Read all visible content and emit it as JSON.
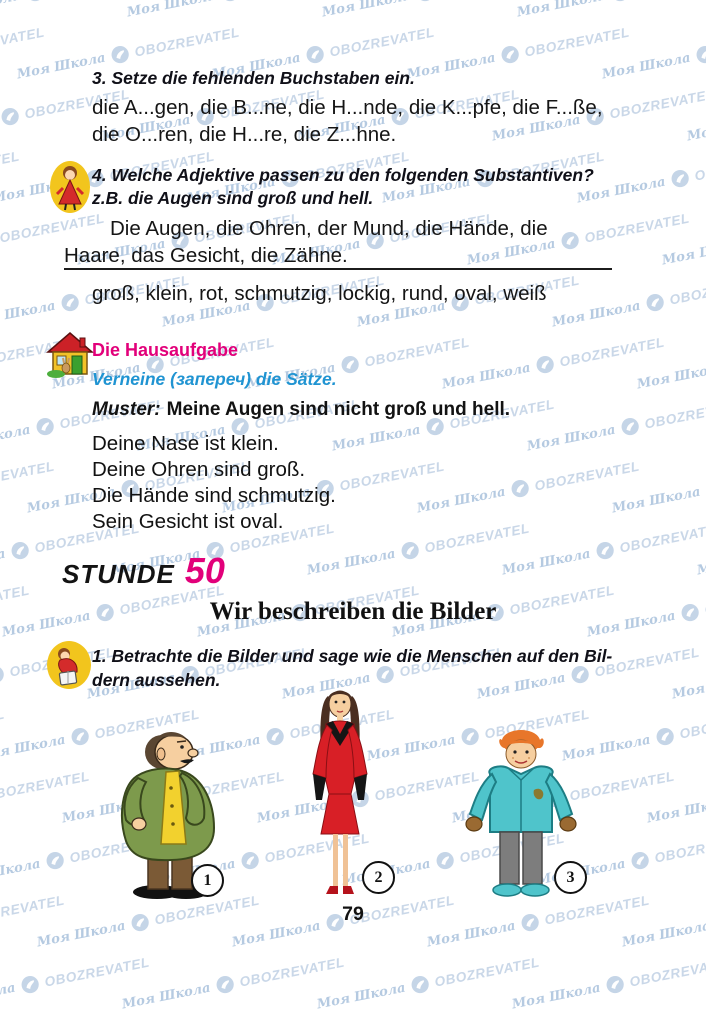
{
  "watermark": {
    "school": "Моя Школа",
    "brand": "OBOZREVATEL",
    "logo_icon": "obozrevatel-bird-logo-icon"
  },
  "exercise3": {
    "title": "3. Setze die fehlenden Buchstaben ein.",
    "line1": "die A...gen, die B...ne, die H...nde, die K...pfe, die F...ße,",
    "line2": "die O...ren, die H...re, die Z...hne."
  },
  "exercise4": {
    "icon": "student-figure-icon",
    "title_line1": "4. Welche Adjektive passen zu den folgenden Substantiven?",
    "title_line2": "z.B. die Augen sind groß und hell.",
    "body_line1": "Die Augen, die Ohren, der Mund, die Hände, die Haare,",
    "body_line2": "das Gesicht, die Zähne.",
    "adjectives": "groß, klein, rot, schmutzig, lockig, rund, oval, weiß"
  },
  "homework": {
    "icon": "house-icon",
    "heading": "Die Hausaufgabe",
    "instruction": "Verneine (запереч) die Sätze.",
    "muster_label": "Muster:",
    "muster_text": "Meine Augen sind nicht groß und hell.",
    "sentences": [
      "Deine Nase ist klein.",
      "Deine Ohren sind groß.",
      "Die Hände sind schmutzig.",
      "Sein Gesicht ist oval."
    ]
  },
  "lesson": {
    "stunde_label": "STUNDE",
    "stunde_number": "50",
    "title": "Wir beschreiben die Bilder"
  },
  "exercise1": {
    "icon": "reading-figure-icon",
    "title_line1": "1. Betrachte die Bilder und sage wie die Menschen auf den Bil-",
    "title_line2": "dern aussehen.",
    "pictures": [
      {
        "number": "1",
        "alt": "short stout man with mustache in green jacket and brown trousers"
      },
      {
        "number": "2",
        "alt": "slim woman with long dark hair in red dress with black gloves"
      },
      {
        "number": "3",
        "alt": "red-haired boy in turquoise jacket with dirty hands"
      }
    ]
  },
  "page": {
    "number": "79"
  },
  "colors": {
    "accent_magenta": "#e2007a",
    "instruction_blue": "#2094d2",
    "watermark_blue": "#c7d6e6"
  }
}
